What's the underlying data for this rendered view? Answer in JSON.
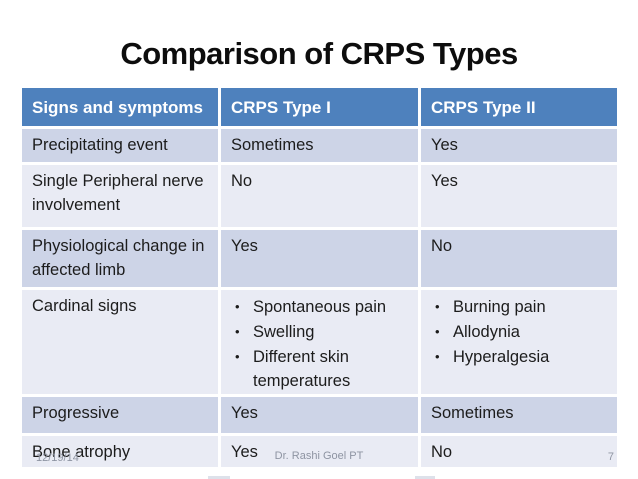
{
  "slide": {
    "title": "Comparison of CRPS Types",
    "footer": {
      "date": "12/19/14",
      "author": "Dr. Rashi Goel PT",
      "page_number": "7"
    }
  },
  "icons": {
    "bullet": "•"
  },
  "table": {
    "columns": [
      "Signs and symptoms",
      "CRPS Type I",
      "CRPS Type II"
    ],
    "rows": [
      {
        "label": "Precipitating event",
        "type1": "Sometimes",
        "type2": "Yes"
      },
      {
        "label": "Single Peripheral nerve involvement",
        "type1": "No",
        "type2": "Yes"
      },
      {
        "label": "Physiological change in affected limb",
        "type1": "Yes",
        "type2": "No"
      },
      {
        "label": "Cardinal signs",
        "type1_list": [
          "Spontaneous pain",
          "Swelling",
          "Different skin temperatures"
        ],
        "type2_list": [
          "Burning pain",
          "Allodynia",
          "Hyperalgesia"
        ]
      },
      {
        "label": "Progressive",
        "type1": "Yes",
        "type2": "Sometimes"
      },
      {
        "label": "Bone atrophy",
        "type1": "Yes",
        "type2": "No"
      }
    ]
  },
  "colors": {
    "header_bg": "#4e81bd",
    "band_dark": "#cdd4e7",
    "band_light": "#e9ebf4",
    "header_text": "#ffffff",
    "body_text": "#1c1c1c",
    "footer_text": "#8e94a2",
    "background": "#ffffff"
  }
}
